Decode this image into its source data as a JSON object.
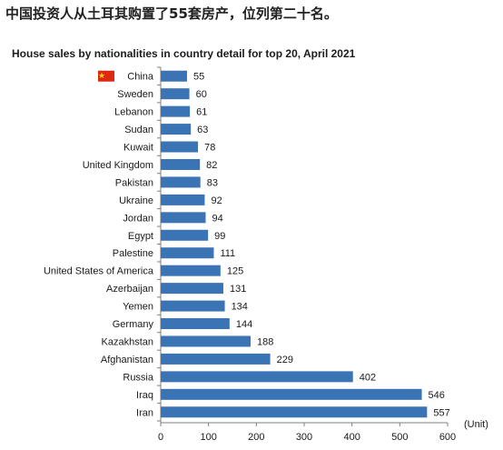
{
  "caption": "中国投资人从土耳其购置了55套房产，位列第二十名。",
  "colors": {
    "bar": "#3b74b5",
    "axis": "#7f7f7f",
    "text": "#1a1a1a",
    "flag": "#de2910",
    "flag_star": "#ffde00"
  },
  "chart_data": {
    "type": "bar",
    "orientation": "horizontal",
    "title": "House sales by nationalities in country detail for top 20, April 2021",
    "unit_label": "(Unit)",
    "categories": [
      "China",
      "Sweden",
      "Lebanon",
      "Sudan",
      "Kuwait",
      "United Kingdom",
      "Pakistan",
      "Ukraine",
      "Jordan",
      "Egypt",
      "Palestine",
      "United States of America",
      "Azerbaijan",
      "Yemen",
      "Germany",
      "Kazakhstan",
      "Afghanistan",
      "Russia",
      "Iraq",
      "Iran"
    ],
    "values": [
      55,
      60,
      61,
      63,
      78,
      82,
      83,
      92,
      94,
      99,
      111,
      125,
      131,
      134,
      144,
      188,
      229,
      402,
      546,
      557
    ],
    "xlim": [
      0,
      600
    ],
    "xticks": [
      "0",
      "100",
      "200",
      "300",
      "400",
      "500",
      "600"
    ],
    "flag_icon": "china-flag-icon",
    "grid": false
  }
}
